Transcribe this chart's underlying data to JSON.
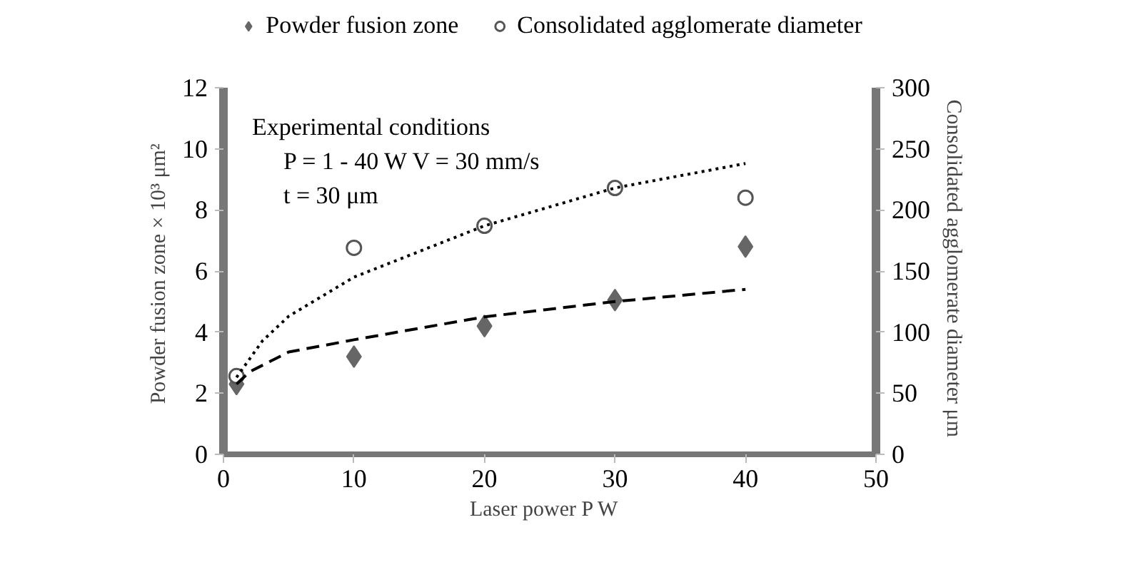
{
  "chart_data": {
    "type": "scatter",
    "xlabel": "Laser power  P  W",
    "ylabel": "Powder fusion zone  × 10³ μm²",
    "y2label": "Consolidated agglomerate diameter  μm",
    "annotations": [
      "Experimental conditions",
      "P = 1 - 40 W   V = 30 mm/s",
      "t = 30 μm"
    ],
    "xlim": [
      0,
      50
    ],
    "xticks": [
      0,
      10,
      20,
      30,
      40,
      50
    ],
    "ylim": [
      0,
      12
    ],
    "yticks": [
      0,
      2,
      4,
      6,
      8,
      10,
      12
    ],
    "y2lim": [
      0,
      300
    ],
    "y2ticks": [
      0,
      50,
      100,
      150,
      200,
      250,
      300
    ],
    "grid": false,
    "legend": "top",
    "series": [
      {
        "name": "Powder fusion zone",
        "marker": "diamond",
        "color": "#666666",
        "x": [
          1,
          10,
          20,
          30,
          40
        ],
        "values": [
          2.3,
          3.2,
          4.2,
          5.05,
          6.8
        ]
      },
      {
        "name": "Consolidated agglomerate diameter",
        "marker": "circle",
        "axis": "y2",
        "color": "#555555",
        "x": [
          1,
          10,
          20,
          30,
          40
        ],
        "values": [
          64,
          169,
          187,
          218,
          210
        ]
      },
      {
        "type": "line",
        "line_style": "dashed",
        "color": "#000000",
        "x": [
          1,
          2,
          5,
          10,
          20,
          30,
          40
        ],
        "values": [
          2.3,
          2.7,
          3.35,
          3.75,
          4.5,
          5.0,
          5.4
        ]
      },
      {
        "type": "line",
        "line_style": "dotted",
        "axis": "y2",
        "color": "#000000",
        "x": [
          1,
          3,
          5,
          10,
          20,
          30,
          40
        ],
        "values": [
          63,
          93,
          113,
          145,
          187,
          218,
          238
        ]
      }
    ]
  }
}
